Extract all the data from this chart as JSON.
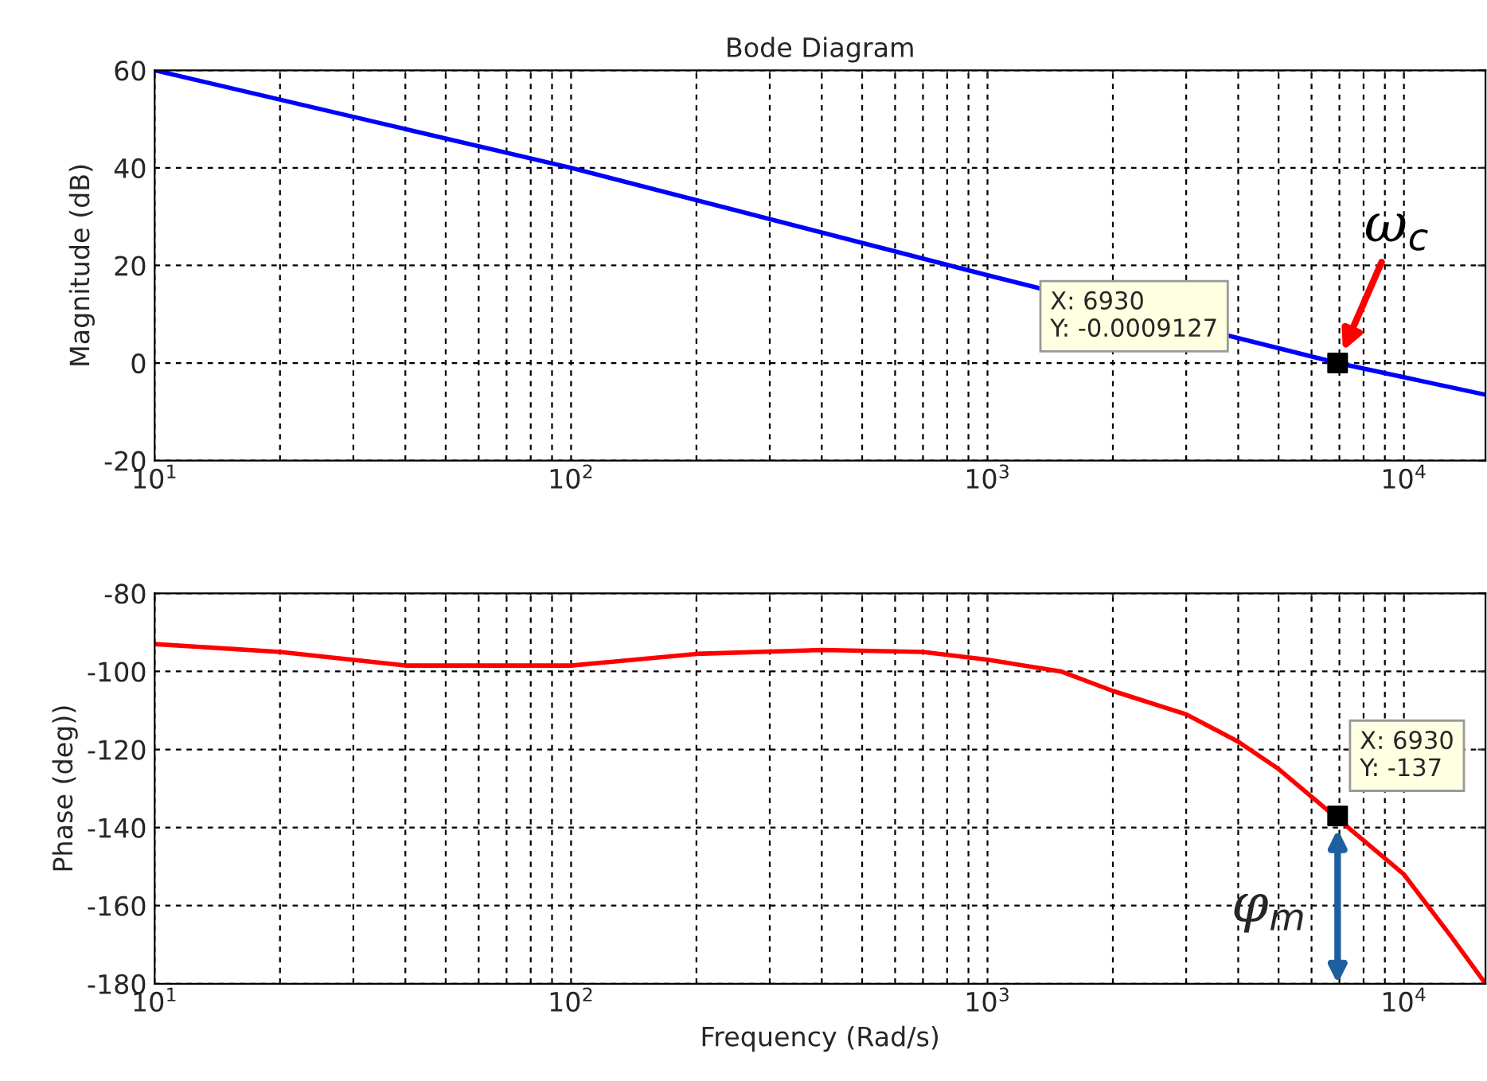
{
  "chart_data": [
    {
      "type": "line",
      "title": "Bode Diagram",
      "ylabel": "Magnitude (dB)",
      "log": "x",
      "grid": true,
      "xlim": [
        10,
        15700
      ],
      "ylim": [
        -20,
        60
      ],
      "xticks": [
        {
          "value": 10,
          "label": "10$^{1}$"
        },
        {
          "value": 100,
          "label": "10$^{2}$"
        },
        {
          "value": 1000,
          "label": "10$^{3}$"
        },
        {
          "value": 10000,
          "label": "10$^{4}$"
        }
      ],
      "yticks": [
        -20,
        0,
        20,
        40,
        60
      ],
      "series": [
        {
          "color": "#0000ff",
          "x": [
            10,
            100,
            1000,
            6930,
            15700
          ],
          "values": [
            60,
            40,
            18,
            0,
            -6.5
          ]
        },
        {
          "type": "scatter",
          "color": "#000000",
          "marker": "square",
          "x": [
            6930
          ],
          "values": [
            0
          ]
        }
      ],
      "annotations": [
        "X: 6930\nY: -0.0009127",
        {
          "text": "ω$_{c}$",
          "x": 6930,
          "y": 0
        }
      ]
    },
    {
      "type": "line",
      "xlabel": "Frequency (Rad/s)",
      "ylabel": "Phase (deg))",
      "log": "x",
      "grid": true,
      "xlim": [
        10,
        15700
      ],
      "ylim": [
        -180,
        -80
      ],
      "xticks": [
        {
          "value": 10,
          "label": "10$^{1}$"
        },
        {
          "value": 100,
          "label": "10$^{2}$"
        },
        {
          "value": 1000,
          "label": "10$^{3}$"
        },
        {
          "value": 10000,
          "label": "10$^{4}$"
        }
      ],
      "yticks": [
        -180,
        -160,
        -140,
        -120,
        -100,
        -80
      ],
      "series": [
        {
          "color": "#ff0000",
          "x": [
            10,
            20,
            40,
            100,
            200,
            400,
            700,
            1000,
            1500,
            2000,
            3000,
            4000,
            5000,
            10000,
            13000,
            15700
          ],
          "values": [
            -93,
            -95,
            -98.5,
            -98.5,
            -95.5,
            -94.5,
            -95,
            -97,
            -100,
            -105,
            -111,
            -118,
            -125,
            -152,
            -168,
            -180
          ]
        },
        {
          "type": "scatter",
          "color": "#000000",
          "marker": "square",
          "x": [
            6930
          ],
          "values": [
            -137
          ]
        }
      ],
      "annotations": [
        "X: 6930\nY: -137",
        {
          "text": "φ$_{m}$",
          "x": 6930,
          "y": -137
        }
      ]
    }
  ]
}
